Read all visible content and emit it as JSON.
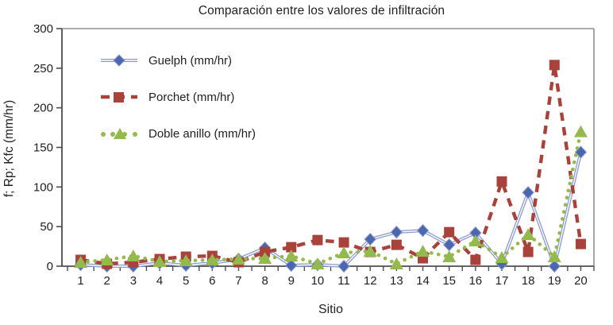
{
  "colors": {
    "guelph_marker": "#4c67ad",
    "guelph_line": "#8b9bce",
    "porchet": "#a8423a",
    "doble_anillo": "#94ba4e",
    "axis": "#4d4d4d",
    "frame": "#8f8f8f",
    "text": "#1f1f1f",
    "background": "#ffffff"
  },
  "chart_data": {
    "type": "line",
    "title": "Comparación entre los valores de infiltración",
    "xlabel": "Sitio",
    "ylabel": "f; Rp; Kfc (mm/hr)",
    "ylim": [
      0,
      300
    ],
    "yticks": [
      0,
      50,
      100,
      150,
      200,
      250,
      300
    ],
    "grid": false,
    "legend_position": "top-left-inside",
    "categories": [
      1,
      2,
      3,
      4,
      5,
      6,
      7,
      8,
      9,
      10,
      11,
      12,
      13,
      14,
      15,
      16,
      17,
      18,
      19,
      20
    ],
    "series": [
      {
        "name": "Guelph (mm/hr)",
        "marker": "diamond",
        "line_style": "solid-double",
        "color": "#4c67ad",
        "line_color": "#8b9bce",
        "values": [
          2,
          0,
          0,
          4,
          1,
          4,
          9,
          23,
          1,
          2,
          0,
          34,
          43,
          45,
          27,
          42,
          3,
          93,
          0,
          144
        ]
      },
      {
        "name": "Porchet (mm/hr)",
        "marker": "square",
        "line_style": "dashed",
        "color": "#a8423a",
        "line_color": "#a8423a",
        "values": [
          8,
          3,
          5,
          9,
          12,
          13,
          5,
          18,
          24,
          33,
          30,
          18,
          27,
          10,
          43,
          8,
          107,
          18,
          254,
          28
        ]
      },
      {
        "name": "Doble anillo (mm/hr)",
        "marker": "triangle",
        "line_style": "dotted",
        "color": "#94ba4e",
        "line_color": "#94ba4e",
        "values": [
          5,
          8,
          13,
          6,
          7,
          8,
          9,
          10,
          13,
          3,
          17,
          19,
          3,
          19,
          12,
          32,
          11,
          40,
          12,
          170
        ]
      }
    ]
  }
}
